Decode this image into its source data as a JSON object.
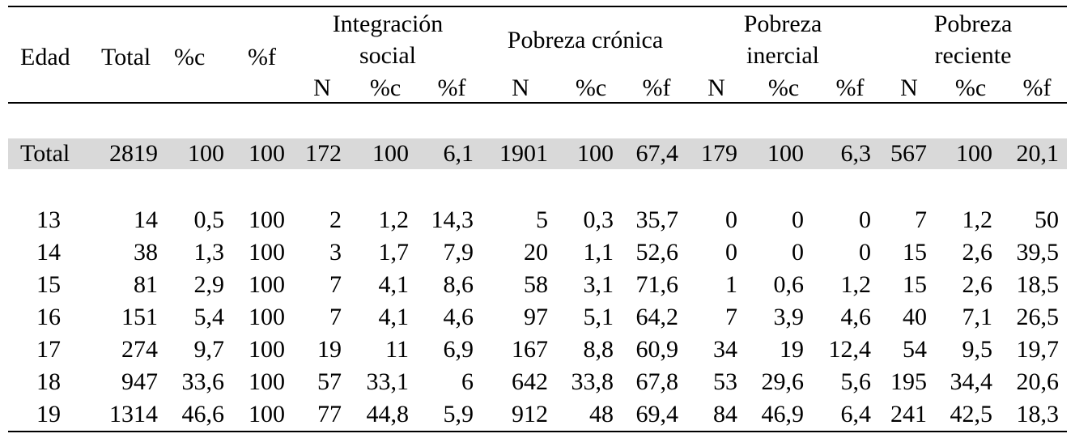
{
  "table": {
    "header_groups": [
      {
        "key": "integracion",
        "line1": "Integración",
        "line2": "social"
      },
      {
        "key": "cronica",
        "line1": "Pobreza crónica",
        "line2": ""
      },
      {
        "key": "inercial",
        "line1": "Pobreza",
        "line2": "inercial"
      },
      {
        "key": "reciente",
        "line1": "Pobreza",
        "line2": "reciente"
      }
    ],
    "main_headers": [
      "Edad",
      "Total",
      "%c",
      "%f"
    ],
    "sub_headers": [
      "N",
      "%c",
      "%f"
    ],
    "total_row": [
      "Total",
      "2819",
      "100",
      "100",
      "172",
      "100",
      "6,1",
      "1901",
      "100",
      "67,4",
      "179",
      "100",
      "6,3",
      "567",
      "100",
      "20,1"
    ],
    "rows": [
      [
        "13",
        "14",
        "0,5",
        "100",
        "2",
        "1,2",
        "14,3",
        "5",
        "0,3",
        "35,7",
        "0",
        "0",
        "0",
        "7",
        "1,2",
        "50"
      ],
      [
        "14",
        "38",
        "1,3",
        "100",
        "3",
        "1,7",
        "7,9",
        "20",
        "1,1",
        "52,6",
        "0",
        "0",
        "0",
        "15",
        "2,6",
        "39,5"
      ],
      [
        "15",
        "81",
        "2,9",
        "100",
        "7",
        "4,1",
        "8,6",
        "58",
        "3,1",
        "71,6",
        "1",
        "0,6",
        "1,2",
        "15",
        "2,6",
        "18,5"
      ],
      [
        "16",
        "151",
        "5,4",
        "100",
        "7",
        "4,1",
        "4,6",
        "97",
        "5,1",
        "64,2",
        "7",
        "3,9",
        "4,6",
        "40",
        "7,1",
        "26,5"
      ],
      [
        "17",
        "274",
        "9,7",
        "100",
        "19",
        "11",
        "6,9",
        "167",
        "8,8",
        "60,9",
        "34",
        "19",
        "12,4",
        "54",
        "9,5",
        "19,7"
      ],
      [
        "18",
        "947",
        "33,6",
        "100",
        "57",
        "33,1",
        "6",
        "642",
        "33,8",
        "67,8",
        "53",
        "29,6",
        "5,6",
        "195",
        "34,4",
        "20,6"
      ],
      [
        "19",
        "1314",
        "46,6",
        "100",
        "77",
        "44,8",
        "5,9",
        "912",
        "48",
        "69,4",
        "84",
        "46,9",
        "6,4",
        "241",
        "42,5",
        "18,3"
      ]
    ]
  }
}
